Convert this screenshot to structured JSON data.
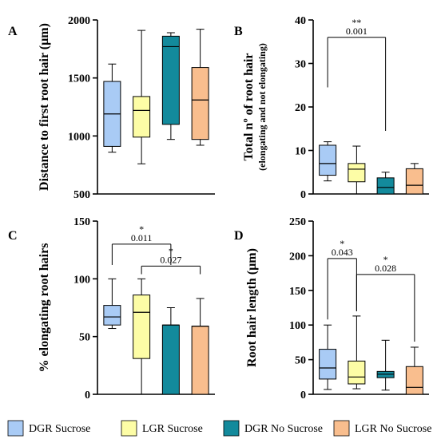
{
  "colors": {
    "DGR Sucrose": "#A9CBF5",
    "LGR Sucrose": "#FDFDA6",
    "DGR No Sucrose": "#138A9C",
    "LGR No Sucrose": "#F9BE8E",
    "median": "#000000",
    "median_on_dark": "#000000"
  },
  "legend": [
    "DGR Sucrose",
    "LGR Sucrose",
    "DGR No Sucrose",
    "LGR No Sucrose"
  ],
  "chart_data": [
    {
      "panel": "A",
      "type": "box",
      "ylabel": "Distance to first root hair (µm)",
      "ylim": [
        500,
        2000
      ],
      "yticks": [
        500,
        1000,
        1500,
        2000
      ],
      "series": [
        {
          "name": "DGR Sucrose",
          "min": 860,
          "q1": 910,
          "median": 1190,
          "q3": 1470,
          "max": 1620
        },
        {
          "name": "LGR Sucrose",
          "min": 760,
          "q1": 990,
          "median": 1220,
          "q3": 1340,
          "max": 1910
        },
        {
          "name": "DGR No Sucrose",
          "min": 970,
          "q1": 1100,
          "median": 1770,
          "q3": 1860,
          "max": 1890
        },
        {
          "name": "LGR No Sucrose",
          "min": 920,
          "q1": 970,
          "median": 1310,
          "q3": 1590,
          "max": 1920
        }
      ],
      "annotations": []
    },
    {
      "panel": "B",
      "type": "box",
      "ylabel": "Total nº of root hair",
      "ylabel2": "(elongating and not elongating)",
      "ylim": [
        0,
        40
      ],
      "yticks": [
        0,
        10,
        20,
        30,
        40
      ],
      "series": [
        {
          "name": "DGR Sucrose",
          "min": 3,
          "q1": 4.3,
          "median": 7,
          "q3": 11.2,
          "max": 12
        },
        {
          "name": "LGR Sucrose",
          "min": 0,
          "q1": 2.8,
          "median": 5.7,
          "q3": 7,
          "max": 11
        },
        {
          "name": "DGR No Sucrose",
          "min": 0,
          "q1": 0,
          "median": 1.5,
          "q3": 3.7,
          "max": 5
        },
        {
          "name": "LGR No Sucrose",
          "min": 0,
          "q1": 0,
          "median": 2,
          "q3": 5.8,
          "max": 7
        }
      ],
      "annotations": [
        {
          "from": 0,
          "to": 2,
          "y": 36,
          "drop_to": [
            24.5,
            14.5
          ],
          "stars": "**",
          "p": "0.001"
        }
      ]
    },
    {
      "panel": "C",
      "type": "box",
      "ylabel": "% elongating root hairs",
      "ylim": [
        0,
        150
      ],
      "yticks": [
        0,
        50,
        100,
        150
      ],
      "series": [
        {
          "name": "DGR Sucrose",
          "min": 57,
          "q1": 60,
          "median": 67,
          "q3": 77,
          "max": 100
        },
        {
          "name": "LGR Sucrose",
          "min": 0,
          "q1": 31,
          "median": 71,
          "q3": 86,
          "max": 100
        },
        {
          "name": "DGR No Sucrose",
          "min": 0,
          "q1": 0,
          "median": 60,
          "q3": 60,
          "max": 75
        },
        {
          "name": "LGR No Sucrose",
          "min": 0,
          "q1": 0,
          "median": 59,
          "q3": 59,
          "max": 83
        }
      ],
      "annotations": [
        {
          "from": 0,
          "to": 2,
          "y": 130,
          "drop_to": [
            112,
            112
          ],
          "stars": "*",
          "p": "0.011"
        },
        {
          "from": 1,
          "to": 3,
          "y": 111,
          "drop_to": [
            104,
            104
          ],
          "stars": "*",
          "p": "0.027"
        }
      ]
    },
    {
      "panel": "D",
      "type": "box",
      "ylabel": "Root hair length (µm)",
      "ylim": [
        0,
        250
      ],
      "yticks": [
        0,
        50,
        100,
        150,
        200,
        250
      ],
      "series": [
        {
          "name": "DGR Sucrose",
          "min": 7,
          "q1": 22,
          "median": 38,
          "q3": 65,
          "max": 100
        },
        {
          "name": "LGR Sucrose",
          "min": 8,
          "q1": 15,
          "median": 25,
          "q3": 48,
          "max": 113
        },
        {
          "name": "DGR No Sucrose",
          "min": 6,
          "q1": 24,
          "median": 29,
          "q3": 33,
          "max": 78
        },
        {
          "name": "LGR No Sucrose",
          "min": 0,
          "q1": 0,
          "median": 10,
          "q3": 40,
          "max": 68
        }
      ],
      "annotations": [
        {
          "from": 0,
          "to": 1,
          "y": 196,
          "drop_to": [
            108,
            120
          ],
          "stars": "*",
          "p": "0.043"
        },
        {
          "from": 1,
          "to": 3,
          "y": 173,
          "drop_to": [
            120,
            76
          ],
          "stars": "*",
          "p": "0.028"
        }
      ]
    }
  ]
}
